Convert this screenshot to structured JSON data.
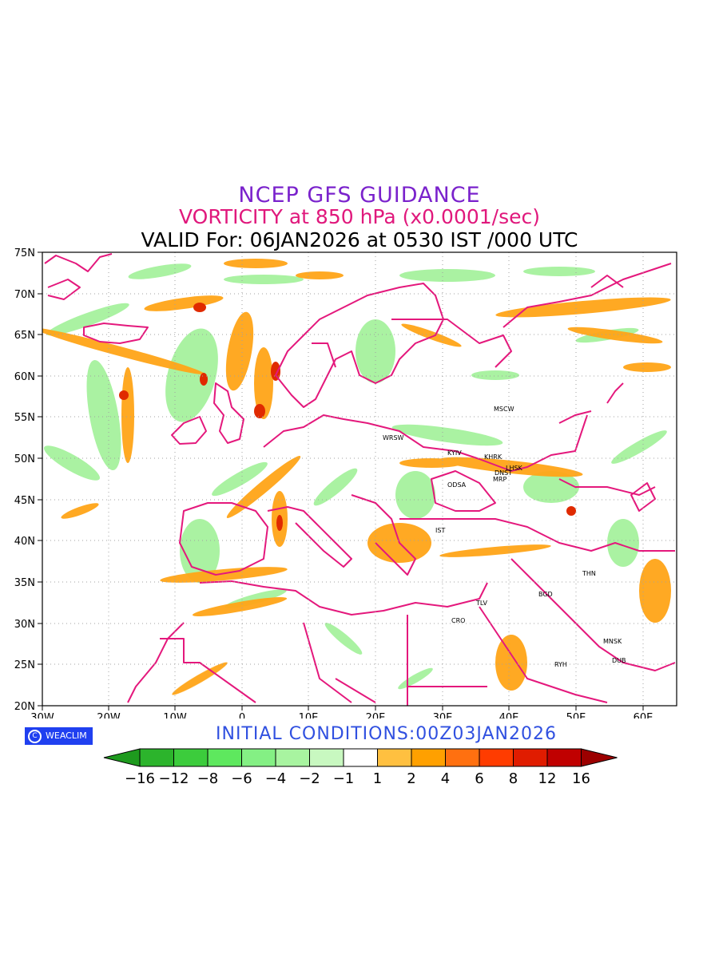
{
  "titles": {
    "line1": "NCEP GFS GUIDANCE",
    "line2": "VORTICITY at 850 hPa (x0.0001/sec)",
    "line3": "VALID For: 06JAN2026 at 0530 IST /000 UTC"
  },
  "initial_conditions": "INITIAL CONDITIONS:00Z03JAN2026",
  "logo": {
    "symbol": "C",
    "text": "WEACLIM"
  },
  "map": {
    "lat_labels": [
      "75N",
      "70N",
      "65N",
      "60N",
      "55N",
      "50N",
      "45N",
      "40N",
      "35N",
      "30N",
      "25N",
      "20N"
    ],
    "lon_labels": [
      "30W",
      "20W",
      "10W",
      "0",
      "10E",
      "20E",
      "30E",
      "40E",
      "50E",
      "60E"
    ],
    "cities": [
      {
        "name": "MSCW"
      },
      {
        "name": "WRSW"
      },
      {
        "name": "KYIV"
      },
      {
        "name": "KHRK"
      },
      {
        "name": "LHSK"
      },
      {
        "name": "DNST"
      },
      {
        "name": "MRP"
      },
      {
        "name": "ODSA"
      },
      {
        "name": "IST"
      },
      {
        "name": "THN"
      },
      {
        "name": "BGD"
      },
      {
        "name": "TLV"
      },
      {
        "name": "CRO"
      },
      {
        "name": "MNSK"
      },
      {
        "name": "DUB"
      },
      {
        "name": "RYH"
      }
    ]
  },
  "colorbar": {
    "labels": [
      "−16",
      "−12",
      "−8",
      "−6",
      "−4",
      "−2",
      "−1",
      "1",
      "2",
      "4",
      "6",
      "8",
      "12",
      "16"
    ],
    "colors": [
      "#1e9a1e",
      "#2cb42c",
      "#3ccc3c",
      "#5ee85e",
      "#84f084",
      "#a8f4a0",
      "#c8f8c0",
      "#ffffff",
      "#ffc040",
      "#ffa000",
      "#ff7010",
      "#ff3c00",
      "#e01c00",
      "#c00000",
      "#9c0000"
    ]
  }
}
